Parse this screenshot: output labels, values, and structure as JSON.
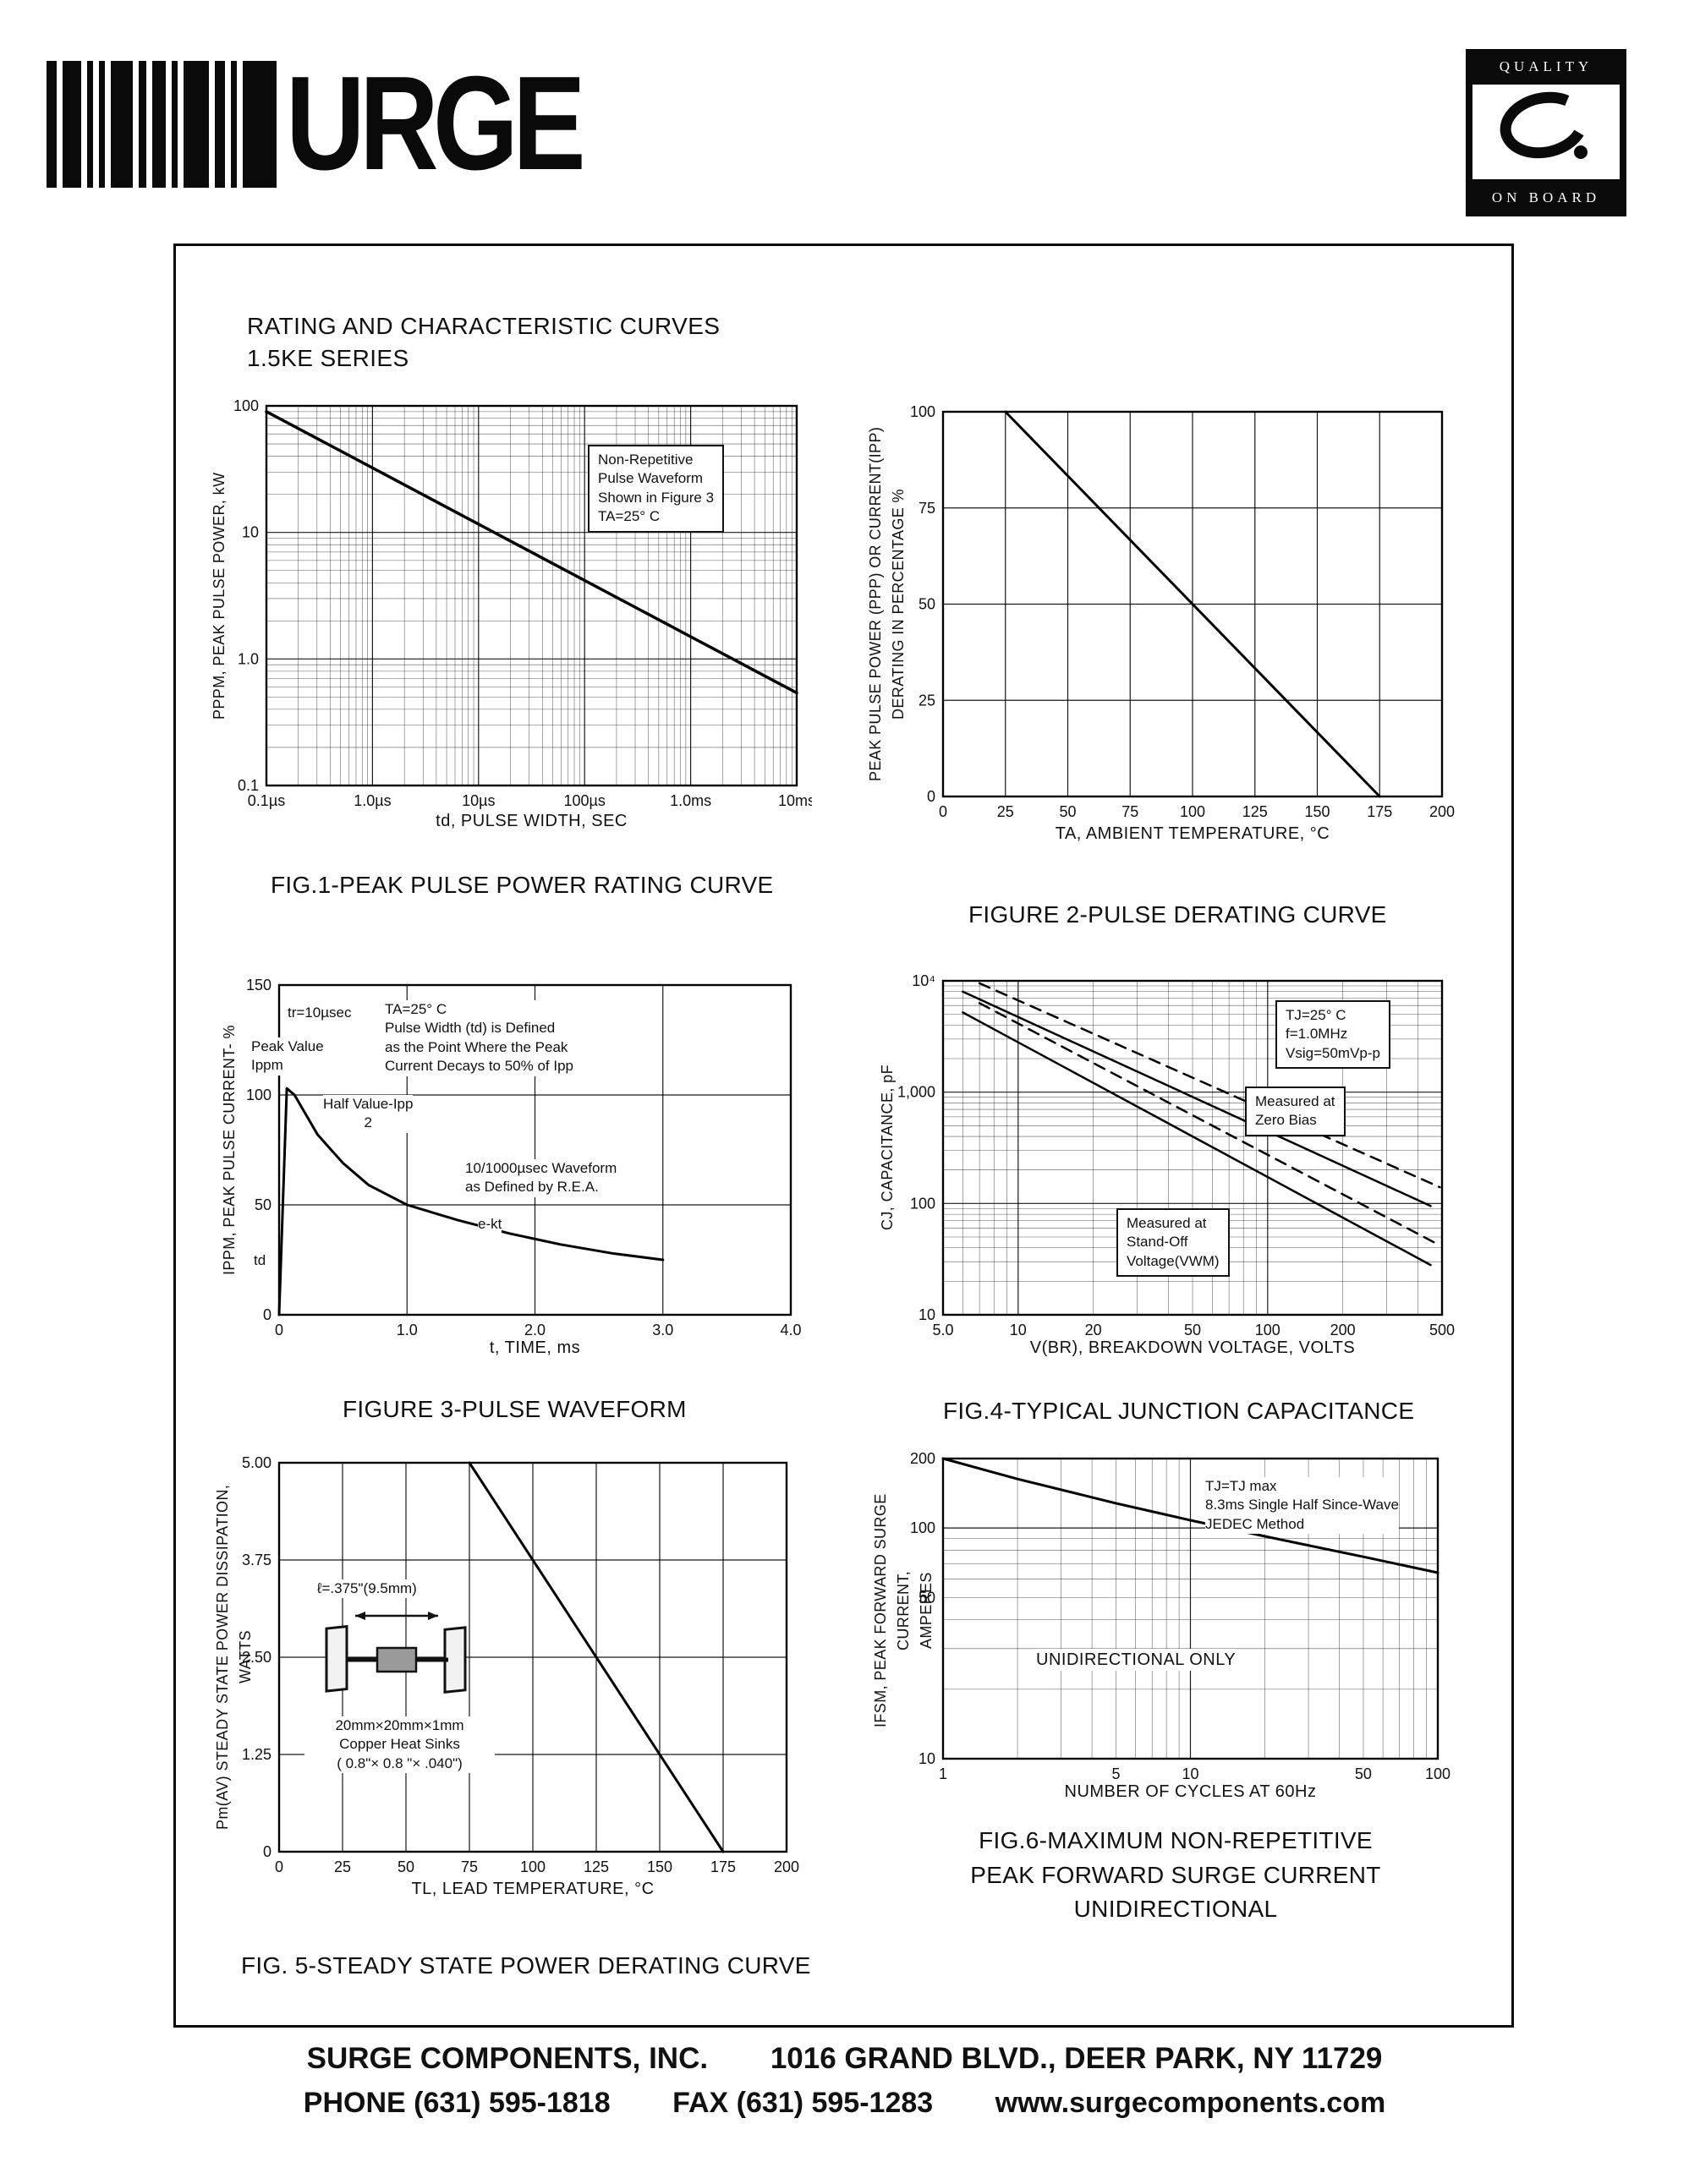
{
  "header": {
    "logo_text": "URGE",
    "quality_logo": {
      "top": "QUALITY",
      "bottom": "ON BOARD"
    }
  },
  "doc": {
    "title_line1": "RATING AND CHARACTERISTIC CURVES",
    "title_line2": "1.5KE SERIES"
  },
  "charts": {
    "fig1": {
      "caption": "FIG.1-PEAK PULSE POWER RATING CURVE",
      "note": [
        "Non-Repetitive",
        "Pulse Waveform",
        "Shown in Figure 3",
        "TA=25° C"
      ],
      "chart": {
        "type": "line",
        "xscale": "log",
        "xmin": 1e-07,
        "xmax": 0.01,
        "yscale": "log",
        "ymin": 0.1,
        "ymax": 100,
        "xticks": [
          {
            "v": 1e-07,
            "l": "0.1µs"
          },
          {
            "v": 1e-06,
            "l": "1.0µs"
          },
          {
            "v": 1e-05,
            "l": "10µs"
          },
          {
            "v": 0.0001,
            "l": "100µs"
          },
          {
            "v": 0.001,
            "l": "1.0ms"
          },
          {
            "v": 0.01,
            "l": "10ms"
          }
        ],
        "yticks": [
          {
            "v": 100,
            "l": "100"
          },
          {
            "v": 10,
            "l": "10"
          },
          {
            "v": 1,
            "l": "1.0"
          },
          {
            "v": 0.1,
            "l": "0.1"
          }
        ],
        "xlabel": "td, PULSE WIDTH, SEC",
        "ylabel": "PPPM, PEAK PULSE POWER, kW",
        "series": [
          {
            "w": 3.5,
            "points": [
              [
                1e-07,
                90
              ],
              [
                0.001,
                1.5
              ],
              [
                0.01,
                0.54
              ]
            ]
          }
        ]
      }
    },
    "fig2": {
      "caption": "FIGURE 2-PULSE DERATING CURVE",
      "chart": {
        "type": "line",
        "xscale": "linear",
        "xmin": 0,
        "xmax": 200,
        "yscale": "linear",
        "ymin": 0,
        "ymax": 100,
        "xticks": [
          {
            "v": 0,
            "l": "0"
          },
          {
            "v": 25,
            "l": "25"
          },
          {
            "v": 50,
            "l": "50"
          },
          {
            "v": 75,
            "l": "75"
          },
          {
            "v": 100,
            "l": "100"
          },
          {
            "v": 125,
            "l": "125"
          },
          {
            "v": 150,
            "l": "150"
          },
          {
            "v": 175,
            "l": "175"
          },
          {
            "v": 200,
            "l": "200"
          }
        ],
        "yticks": [
          {
            "v": 100,
            "l": "100"
          },
          {
            "v": 75,
            "l": "75"
          },
          {
            "v": 50,
            "l": "50"
          },
          {
            "v": 25,
            "l": "25"
          },
          {
            "v": 0,
            "l": "0"
          }
        ],
        "xlabel": "TA, AMBIENT  TEMPERATURE, °C",
        "ylabel": [
          "PEAK PULSE POWER (PPP) OR CURRENT(IPP)",
          "DERATING IN PERCENTAGE %"
        ],
        "series": [
          {
            "w": 3,
            "points": [
              [
                25,
                100
              ],
              [
                175,
                0
              ]
            ]
          }
        ]
      }
    },
    "fig3": {
      "caption": "FIGURE 3-PULSE WAVEFORM",
      "notes": {
        "tr": "tr=10µsec",
        "peak": [
          "Peak Value",
          "Ippm"
        ],
        "half": [
          "Half Value-Ipp",
          "2"
        ],
        "cond": [
          "TA=25° C",
          "Pulse Width (td) is Defined",
          "as the Point Where the Peak",
          "Current Decays to 50% of Ipp"
        ],
        "wave": [
          "10/1000µsec Waveform",
          "as Defined by R.E.A."
        ],
        "ekt": "e-kt",
        "td": "td"
      },
      "chart": {
        "type": "line",
        "xscale": "linear",
        "xmin": 0,
        "xmax": 4,
        "yscale": "linear",
        "ymin": 0,
        "ymax": 150,
        "xticks": [
          {
            "v": 0,
            "l": "0"
          },
          {
            "v": 1,
            "l": "1.0"
          },
          {
            "v": 2,
            "l": "2.0"
          },
          {
            "v": 3,
            "l": "3.0"
          },
          {
            "v": 4,
            "l": "4.0"
          }
        ],
        "yticks": [
          {
            "v": 150,
            "l": "150"
          },
          {
            "v": 100,
            "l": "100"
          },
          {
            "v": 50,
            "l": "50"
          },
          {
            "v": 0,
            "l": "0"
          }
        ],
        "xlabel": "t, TIME, ms",
        "ylabel": "IPPM, PEAK PULSE CURRENT- %",
        "series": [
          {
            "w": 3,
            "points": [
              [
                0,
                0
              ],
              [
                0.06,
                103
              ],
              [
                0.12,
                100
              ],
              [
                0.3,
                82
              ],
              [
                0.5,
                69
              ],
              [
                0.7,
                59
              ],
              [
                1.0,
                50
              ],
              [
                1.4,
                43
              ],
              [
                1.8,
                37
              ],
              [
                2.2,
                32
              ],
              [
                2.6,
                28
              ],
              [
                3.0,
                25
              ]
            ]
          }
        ]
      }
    },
    "fig4": {
      "caption": "FIG.4-TYPICAL JUNCTION CAPACITANCE",
      "notes": {
        "cond": [
          "TJ=25° C",
          "f=1.0MHz",
          "Vsig=50mVp-p"
        ],
        "zero": [
          "Measured at",
          "Zero Bias"
        ],
        "standoff": [
          "Measured at",
          "Stand-Off",
          "Voltage(VWM)"
        ]
      },
      "chart": {
        "type": "line",
        "xscale": "log",
        "xmin": 5,
        "xmax": 500,
        "yscale": "log",
        "ymin": 10,
        "ymax": 10000,
        "xticks": [
          {
            "v": 5,
            "l": "5.0"
          },
          {
            "v": 10,
            "l": "10"
          },
          {
            "v": 20,
            "l": "20"
          },
          {
            "v": 50,
            "l": "50"
          },
          {
            "v": 100,
            "l": "100"
          },
          {
            "v": 200,
            "l": "200"
          },
          {
            "v": 500,
            "l": "500"
          }
        ],
        "yticks": [
          {
            "v": 10000,
            "l": "10⁴"
          },
          {
            "v": 1000,
            "l": "1,000"
          },
          {
            "v": 100,
            "l": "100"
          },
          {
            "v": 10,
            "l": "10"
          }
        ],
        "xlabel": "V(BR), BREAKDOWN VOLTAGE, VOLTS",
        "ylabel": "CJ, CAPACITANCE, pF",
        "series": [
          {
            "w": 2.5,
            "points": [
              [
                6,
                8000
              ],
              [
                450,
                95
              ]
            ]
          },
          {
            "w": 2.5,
            "dash": true,
            "points": [
              [
                7,
                9500
              ],
              [
                490,
                140
              ]
            ]
          },
          {
            "w": 2.5,
            "points": [
              [
                6,
                5200
              ],
              [
                450,
                28
              ]
            ]
          },
          {
            "w": 2.5,
            "dash": true,
            "points": [
              [
                7,
                6300
              ],
              [
                490,
                42
              ]
            ]
          }
        ]
      }
    },
    "fig5": {
      "caption": "FIG. 5-STEADY STATE POWER DERATING CURVE",
      "notes": {
        "length": "ℓ=.375\"(9.5mm)",
        "sink": [
          "20mm×20mm×1mm",
          "Copper Heat Sinks",
          "( 0.8\"× 0.8 \"× .040\")"
        ]
      },
      "chart": {
        "type": "line",
        "xscale": "linear",
        "xmin": 0,
        "xmax": 200,
        "yscale": "linear",
        "ymin": 0,
        "ymax": 5,
        "xticks": [
          {
            "v": 0,
            "l": "0"
          },
          {
            "v": 25,
            "l": "25"
          },
          {
            "v": 50,
            "l": "50"
          },
          {
            "v": 75,
            "l": "75"
          },
          {
            "v": 100,
            "l": "100"
          },
          {
            "v": 125,
            "l": "125"
          },
          {
            "v": 150,
            "l": "150"
          },
          {
            "v": 175,
            "l": "175"
          },
          {
            "v": 200,
            "l": "200"
          }
        ],
        "yticks": [
          {
            "v": 5,
            "l": "5.00"
          },
          {
            "v": 3.75,
            "l": "3.75"
          },
          {
            "v": 2.5,
            "l": "2.50"
          },
          {
            "v": 1.25,
            "l": "1.25"
          },
          {
            "v": 0,
            "l": "0"
          }
        ],
        "xlabel": "TL, LEAD TEMPERATURE, °C",
        "ylabel": "Pm(AV) STEADY STATE POWER DISSIPATION, WATTS",
        "series": [
          {
            "w": 3,
            "points": [
              [
                75,
                5
              ],
              [
                175,
                0
              ]
            ]
          }
        ]
      }
    },
    "fig6": {
      "caption": [
        "FIG.6-MAXIMUM NON-REPETITIVE",
        "PEAK FORWARD SURGE CURRENT",
        "UNIDIRECTIONAL"
      ],
      "notes": {
        "cond": [
          "TJ=TJ max",
          "8.3ms Single Half Since-Wave",
          "JEDEC Method"
        ],
        "uni": "UNIDIRECTIONAL ONLY"
      },
      "chart": {
        "type": "line",
        "xscale": "log",
        "xmin": 1,
        "xmax": 100,
        "yscale": "log",
        "ymin": 10,
        "ymax": 200,
        "xticks": [
          {
            "v": 1,
            "l": "1"
          },
          {
            "v": 5,
            "l": "5"
          },
          {
            "v": 10,
            "l": "10"
          },
          {
            "v": 50,
            "l": "50"
          },
          {
            "v": 100,
            "l": "100"
          }
        ],
        "yticks": [
          {
            "v": 200,
            "l": "200"
          },
          {
            "v": 100,
            "l": "100"
          },
          {
            "v": 50,
            "l": "50"
          },
          {
            "v": 10,
            "l": "10"
          }
        ],
        "xlabel": "NUMBER OF CYCLES AT 60Hz",
        "ylabel": [
          "IFSM, PEAK FORWARD SURGE CURRENT,",
          "AMPERES"
        ],
        "series": [
          {
            "w": 3,
            "points": [
              [
                1,
                200
              ],
              [
                2,
                163
              ],
              [
                5,
                128
              ],
              [
                10,
                108
              ],
              [
                20,
                92
              ],
              [
                50,
                75
              ],
              [
                100,
                64
              ]
            ]
          }
        ]
      }
    }
  },
  "footer": {
    "company": "SURGE COMPONENTS, INC.",
    "address": "1016 GRAND BLVD., DEER PARK, NY  11729",
    "phone": "PHONE (631) 595-1818",
    "fax": "FAX  (631) 595-1283",
    "website": "www.surgecomponents.com"
  }
}
